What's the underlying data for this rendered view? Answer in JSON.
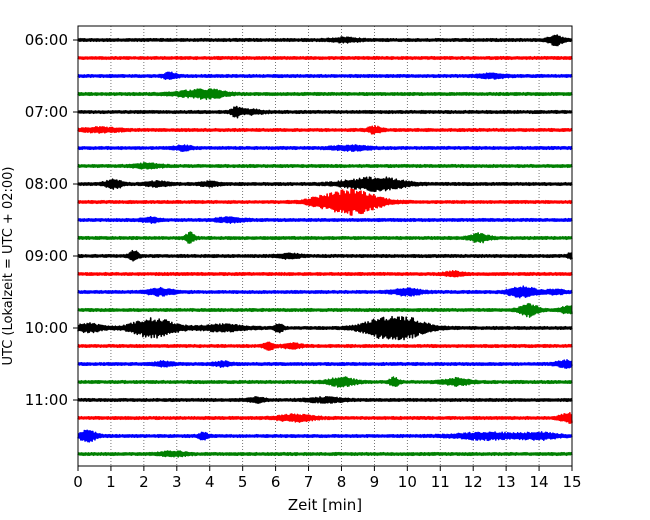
{
  "chart_data": {
    "type": "line",
    "subtype": "helicorder",
    "title": "",
    "xlabel": "Zeit  [min]",
    "ylabel": "UTC (Lokalzeit = UTC + 02:00)",
    "xlim": [
      0,
      15
    ],
    "x_ticks": [
      "0",
      "1",
      "2",
      "3",
      "4",
      "5",
      "6",
      "7",
      "8",
      "9",
      "10",
      "11",
      "12",
      "13",
      "14",
      "15"
    ],
    "row_minutes": 15,
    "start_time": "06:00",
    "y_tick_labels": [
      "06:00",
      "07:00",
      "08:00",
      "09:00",
      "10:00",
      "11:00"
    ],
    "row_colors": [
      "#000000",
      "#ff0000",
      "#0000ff",
      "#008000"
    ],
    "vertical_grid": "dotted",
    "traces": [
      {
        "color": "black",
        "events": [
          [
            8.1,
            0.3,
            2
          ],
          [
            14.5,
            0.15,
            5
          ]
        ]
      },
      {
        "color": "red",
        "events": []
      },
      {
        "color": "blue",
        "events": [
          [
            2.8,
            0.15,
            3
          ],
          [
            12.6,
            0.3,
            2
          ]
        ]
      },
      {
        "color": "green",
        "events": [
          [
            3.6,
            0.5,
            3
          ],
          [
            4.1,
            0.3,
            2
          ]
        ]
      },
      {
        "color": "black",
        "events": [
          [
            4.8,
            0.1,
            4
          ],
          [
            5.2,
            0.3,
            2
          ]
        ]
      },
      {
        "color": "red",
        "events": [
          [
            0.7,
            0.4,
            2
          ],
          [
            9.0,
            0.15,
            3
          ]
        ]
      },
      {
        "color": "blue",
        "events": [
          [
            3.2,
            0.2,
            2
          ],
          [
            8.3,
            0.4,
            2
          ]
        ]
      },
      {
        "color": "green",
        "events": [
          [
            2.1,
            0.3,
            2
          ]
        ]
      },
      {
        "color": "black",
        "events": [
          [
            1.1,
            0.2,
            4
          ],
          [
            2.4,
            0.25,
            2
          ],
          [
            4.0,
            0.2,
            2
          ],
          [
            8.5,
            0.5,
            3
          ],
          [
            9.3,
            0.5,
            5
          ]
        ]
      },
      {
        "color": "red",
        "events": [
          [
            8.3,
            0.6,
            12
          ],
          [
            7.3,
            0.3,
            2
          ]
        ]
      },
      {
        "color": "blue",
        "events": [
          [
            2.2,
            0.2,
            2
          ],
          [
            4.6,
            0.3,
            2
          ]
        ]
      },
      {
        "color": "green",
        "events": [
          [
            3.4,
            0.1,
            5
          ],
          [
            12.2,
            0.2,
            4
          ]
        ]
      },
      {
        "color": "black",
        "events": [
          [
            1.7,
            0.1,
            5
          ],
          [
            6.4,
            0.25,
            2
          ],
          [
            15.0,
            0.1,
            3
          ]
        ]
      },
      {
        "color": "red",
        "events": [
          [
            11.4,
            0.2,
            2
          ]
        ]
      },
      {
        "color": "blue",
        "events": [
          [
            2.5,
            0.3,
            3
          ],
          [
            10.0,
            0.3,
            3
          ],
          [
            13.5,
            0.3,
            5
          ],
          [
            14.5,
            0.2,
            2
          ]
        ]
      },
      {
        "color": "green",
        "events": [
          [
            13.7,
            0.2,
            6
          ],
          [
            14.9,
            0.2,
            3
          ]
        ]
      },
      {
        "color": "black",
        "events": [
          [
            0.3,
            0.3,
            4
          ],
          [
            2.3,
            0.5,
            9
          ],
          [
            4.4,
            0.5,
            3
          ],
          [
            9.8,
            0.55,
            11
          ],
          [
            9.0,
            0.4,
            4
          ],
          [
            6.1,
            0.1,
            4
          ]
        ]
      },
      {
        "color": "red",
        "events": [
          [
            5.8,
            0.1,
            4
          ],
          [
            6.5,
            0.2,
            2
          ]
        ]
      },
      {
        "color": "blue",
        "events": [
          [
            2.6,
            0.2,
            2
          ],
          [
            4.4,
            0.2,
            2
          ],
          [
            14.8,
            0.2,
            3
          ]
        ]
      },
      {
        "color": "green",
        "events": [
          [
            8.0,
            0.3,
            4
          ],
          [
            9.6,
            0.1,
            4
          ],
          [
            11.5,
            0.3,
            3
          ]
        ]
      },
      {
        "color": "black",
        "events": [
          [
            5.4,
            0.2,
            2
          ],
          [
            7.5,
            0.4,
            2
          ]
        ]
      },
      {
        "color": "red",
        "events": [
          [
            6.6,
            0.4,
            3
          ],
          [
            14.9,
            0.2,
            4
          ]
        ]
      },
      {
        "color": "blue",
        "events": [
          [
            0.3,
            0.2,
            5
          ],
          [
            3.8,
            0.1,
            3
          ],
          [
            12.4,
            0.7,
            3
          ],
          [
            14.0,
            0.4,
            3
          ]
        ]
      },
      {
        "color": "green",
        "events": [
          [
            2.9,
            0.3,
            2
          ]
        ]
      }
    ]
  }
}
